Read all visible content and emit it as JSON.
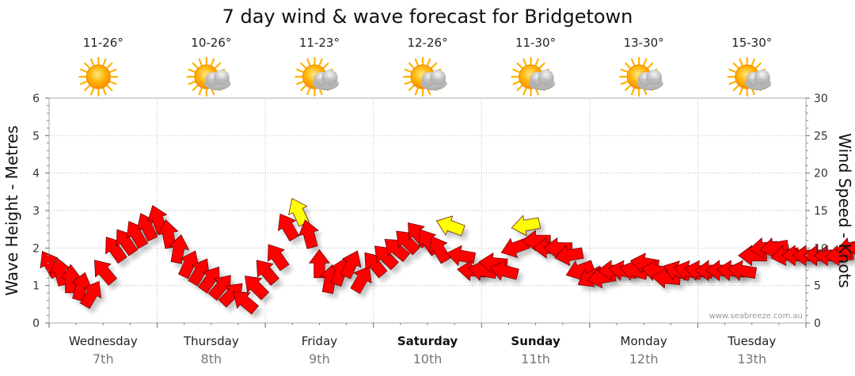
{
  "chart_data": {
    "type": "wind-wave-forecast",
    "title": "7 day wind & wave forecast for Bridgetown",
    "y_left": {
      "label": "Wave Height - Metres",
      "range": [
        0,
        6
      ],
      "ticks": [
        "0",
        "1",
        "2",
        "3",
        "4",
        "5",
        "6"
      ]
    },
    "y_right": {
      "label": "Wind Speed - Knots",
      "range": [
        0,
        30
      ],
      "ticks": [
        "0",
        "5",
        "10",
        "15",
        "20",
        "25",
        "30"
      ]
    },
    "days": [
      {
        "name": "Wednesday",
        "date": "7th",
        "temp": "11-26°",
        "icon": "sun-icon",
        "bold": false
      },
      {
        "name": "Thursday",
        "date": "8th",
        "temp": "10-26°",
        "icon": "sun-cloud-icon",
        "bold": false
      },
      {
        "name": "Friday",
        "date": "9th",
        "temp": "11-23°",
        "icon": "sun-cloud-icon",
        "bold": false
      },
      {
        "name": "Saturday",
        "date": "10th",
        "temp": "12-26°",
        "icon": "sun-cloud-icon",
        "bold": true
      },
      {
        "name": "Sunday",
        "date": "11th",
        "temp": "11-30°",
        "icon": "sun-cloud-icon",
        "bold": true
      },
      {
        "name": "Monday",
        "date": "12th",
        "temp": "13-30°",
        "icon": "sun-cloud-icon",
        "bold": false
      },
      {
        "name": "Tuesday",
        "date": "13th",
        "temp": "15-30°",
        "icon": "sun-cloud-icon",
        "bold": false
      }
    ],
    "wind_arrows": [
      [
        0.0,
        8,
        -30,
        "red"
      ],
      [
        0.1,
        7,
        -15,
        "red"
      ],
      [
        0.2,
        6,
        0,
        "red"
      ],
      [
        0.3,
        5,
        15,
        "red"
      ],
      [
        0.4,
        4,
        30,
        "red"
      ],
      [
        0.5,
        7,
        -40,
        "red"
      ],
      [
        0.6,
        10,
        -35,
        "red"
      ],
      [
        0.7,
        11,
        -35,
        "red"
      ],
      [
        0.8,
        12,
        -30,
        "red"
      ],
      [
        0.9,
        13,
        -25,
        "red"
      ],
      [
        1.0,
        14,
        -20,
        "red"
      ],
      [
        1.1,
        12,
        -10,
        "red"
      ],
      [
        1.2,
        10,
        10,
        "red"
      ],
      [
        1.3,
        8,
        25,
        "red"
      ],
      [
        1.4,
        7,
        30,
        "red"
      ],
      [
        1.5,
        6,
        35,
        "red"
      ],
      [
        1.6,
        5,
        40,
        "red"
      ],
      [
        1.7,
        4,
        45,
        "red"
      ],
      [
        1.8,
        3,
        -50,
        "red"
      ],
      [
        1.9,
        5,
        -45,
        "red"
      ],
      [
        2.0,
        7,
        -40,
        "red"
      ],
      [
        2.1,
        9,
        -35,
        "red"
      ],
      [
        2.2,
        13,
        -30,
        "red"
      ],
      [
        2.3,
        15,
        -25,
        "yellow"
      ],
      [
        2.4,
        12,
        -15,
        "red"
      ],
      [
        2.5,
        8,
        0,
        "red"
      ],
      [
        2.6,
        6,
        10,
        "red"
      ],
      [
        2.7,
        7,
        20,
        "red"
      ],
      [
        2.8,
        8,
        25,
        "red"
      ],
      [
        2.9,
        6,
        30,
        "red"
      ],
      [
        3.0,
        8,
        -40,
        "red"
      ],
      [
        3.1,
        9,
        -45,
        "red"
      ],
      [
        3.2,
        10,
        -50,
        "red"
      ],
      [
        3.3,
        11,
        -45,
        "red"
      ],
      [
        3.4,
        12,
        -40,
        "red"
      ],
      [
        3.5,
        11,
        -35,
        "red"
      ],
      [
        3.6,
        10,
        -30,
        "red"
      ],
      [
        3.7,
        13,
        -70,
        "yellow"
      ],
      [
        3.8,
        9,
        -80,
        "red"
      ],
      [
        3.9,
        7,
        -85,
        "red"
      ],
      [
        4.0,
        7,
        -80,
        "red"
      ],
      [
        4.1,
        8,
        -85,
        "red"
      ],
      [
        4.2,
        7,
        -75,
        "red"
      ],
      [
        4.3,
        10,
        -110,
        "red"
      ],
      [
        4.4,
        13,
        -100,
        "yellow"
      ],
      [
        4.5,
        11,
        -90,
        "red"
      ],
      [
        4.6,
        10,
        -90,
        "red"
      ],
      [
        4.7,
        10,
        -90,
        "red"
      ],
      [
        4.8,
        9,
        -100,
        "red"
      ],
      [
        4.9,
        7,
        -110,
        "red"
      ],
      [
        5.0,
        6,
        -120,
        "red"
      ],
      [
        5.1,
        6,
        -100,
        "red"
      ],
      [
        5.2,
        7,
        -90,
        "red"
      ],
      [
        5.3,
        7,
        -80,
        "red"
      ],
      [
        5.4,
        7,
        -75,
        "red"
      ],
      [
        5.5,
        8,
        -80,
        "red"
      ],
      [
        5.6,
        7,
        -80,
        "red"
      ],
      [
        5.7,
        6,
        -85,
        "red"
      ],
      [
        5.8,
        7,
        -70,
        "red"
      ],
      [
        5.9,
        7,
        -75,
        "red"
      ],
      [
        6.0,
        7,
        -80,
        "red"
      ],
      [
        6.1,
        7,
        -90,
        "red"
      ],
      [
        6.2,
        7,
        -90,
        "red"
      ],
      [
        6.3,
        7,
        -85,
        "red"
      ],
      [
        6.4,
        7,
        -80,
        "red"
      ],
      [
        6.5,
        9,
        -90,
        "red"
      ],
      [
        6.6,
        10,
        -95,
        "red"
      ],
      [
        6.7,
        10,
        -100,
        "red"
      ],
      [
        6.8,
        9,
        -100,
        "red"
      ],
      [
        6.9,
        9,
        -90,
        "red"
      ],
      [
        7.0,
        9,
        -90,
        "red"
      ],
      [
        7.1,
        9,
        -90,
        "red"
      ],
      [
        7.2,
        9,
        -90,
        "red"
      ],
      [
        7.3,
        9,
        -95,
        "red"
      ],
      [
        7.4,
        10,
        -100,
        "red"
      ],
      [
        7.5,
        10,
        -90,
        "red"
      ],
      [
        7.6,
        10,
        -85,
        "red"
      ],
      [
        7.7,
        9,
        -80,
        "red"
      ],
      [
        7.8,
        9,
        -75,
        "red"
      ],
      [
        7.9,
        9,
        -85,
        "red"
      ],
      [
        8.0,
        8,
        -90,
        "red"
      ],
      [
        8.1,
        8,
        -85,
        "red"
      ],
      [
        8.2,
        8,
        -80,
        "red"
      ],
      [
        8.3,
        7,
        -75,
        "red"
      ]
    ],
    "watermark": "www.seabreeze.com.au",
    "grid": true
  }
}
